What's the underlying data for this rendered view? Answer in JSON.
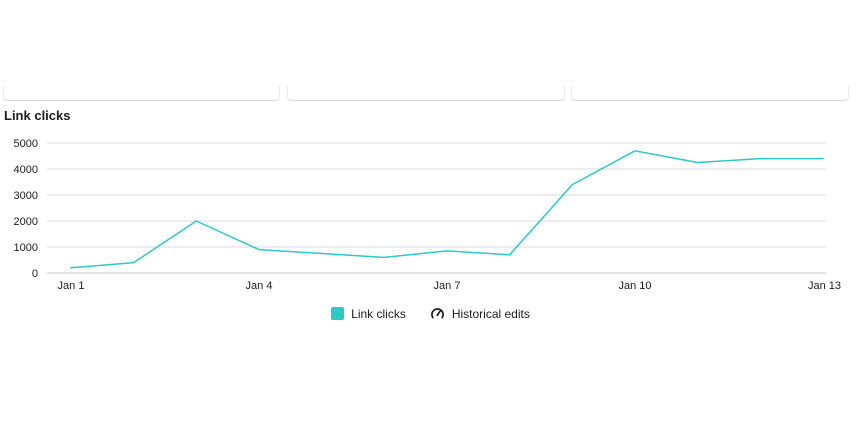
{
  "colors": {
    "line": "#2ec9c4",
    "grid": "#d9dbe0",
    "axis": "#c8cacf",
    "text": "#1c1c1c"
  },
  "legend": {
    "link_clicks_label": "Link clicks",
    "historical_edits_label": "Historical edits",
    "historical_edits_icon": "gauge-icon"
  },
  "chart_data": {
    "type": "line",
    "title": "Link clicks",
    "x": [
      "Jan 1",
      "Jan 2",
      "Jan 3",
      "Jan 4",
      "Jan 5",
      "Jan 6",
      "Jan 7",
      "Jan 8",
      "Jan 9",
      "Jan 10",
      "Jan 11",
      "Jan 12",
      "Jan 13"
    ],
    "x_tick_labels": [
      "Jan 1",
      "Jan 4",
      "Jan 7",
      "Jan 10",
      "Jan 13"
    ],
    "series": [
      {
        "name": "Link clicks",
        "values": [
          200,
          400,
          2000,
          900,
          750,
          600,
          850,
          700,
          3400,
          4700,
          4250,
          4400,
          4400
        ]
      }
    ],
    "ylim": [
      0,
      5000
    ],
    "y_ticks": [
      0,
      1000,
      2000,
      3000,
      4000,
      5000
    ],
    "grid": true,
    "legend_position": "bottom"
  }
}
